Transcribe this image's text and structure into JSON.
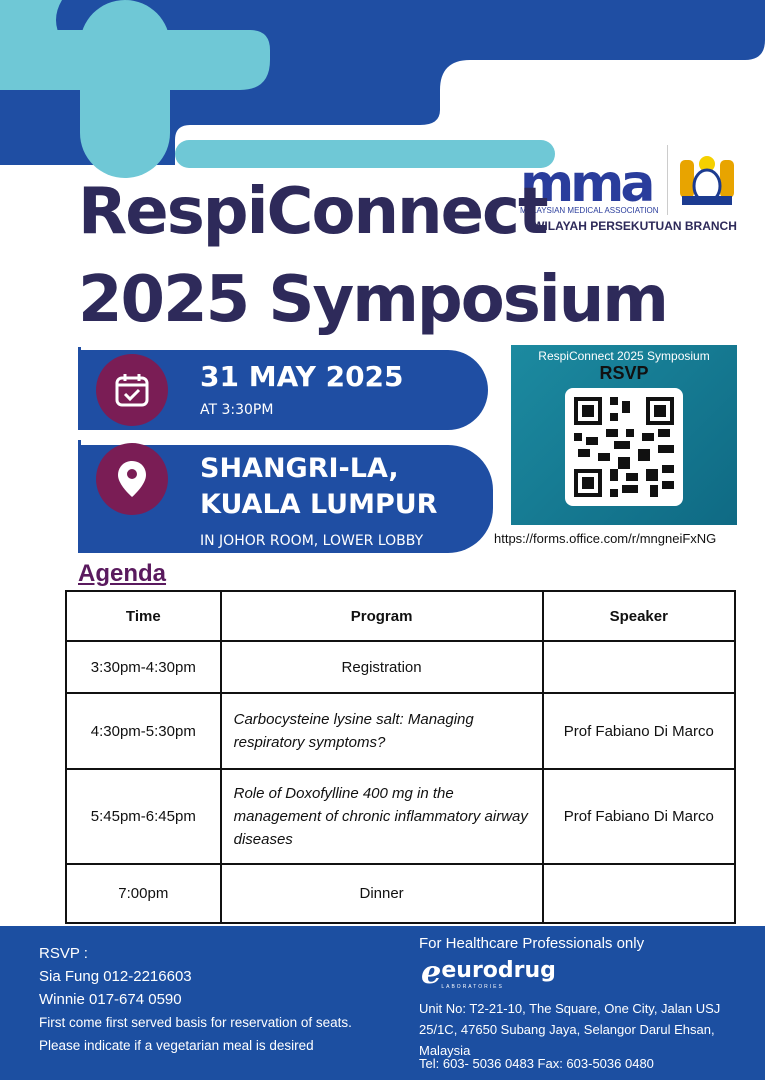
{
  "title_line1": "RespiConnect",
  "title_line2": "2025 Symposium",
  "logo": {
    "mma": "mma",
    "association": "MALAYSIAN MEDICAL ASSOCIATION",
    "branch": "WILAYAH PERSEKUTUAN BRANCH"
  },
  "date": {
    "main": "31 MAY 2025",
    "sub": "AT 3:30PM",
    "icon": "calendar-check-icon"
  },
  "venue": {
    "line1": "SHANGRI-LA,",
    "line2": "KUALA LUMPUR",
    "sub": "IN JOHOR ROOM, LOWER LOBBY",
    "icon": "map-pin-icon"
  },
  "rsvp_box": {
    "title": "RespiConnect 2025 Symposium",
    "label": "RSVP",
    "url": "https://forms.office.com/r/mngneiFxNG"
  },
  "agenda": {
    "heading": "Agenda",
    "headers": [
      "Time",
      "Program",
      "Speaker"
    ],
    "rows": [
      {
        "time": "3:30pm-4:30pm",
        "program": "Registration",
        "speaker": ""
      },
      {
        "time": "4:30pm-5:30pm",
        "program": "Carbocysteine lysine salt: Managing respiratory symptoms?",
        "speaker": "Prof Fabiano Di Marco"
      },
      {
        "time": "5:45pm-6:45pm",
        "program": "Role of Doxofylline 400 mg in the management of chronic inflammatory airway diseases",
        "speaker": "Prof Fabiano Di Marco"
      },
      {
        "time": "7:00pm",
        "program": "Dinner",
        "speaker": ""
      }
    ]
  },
  "footer": {
    "rsvp": "RSVP :",
    "contact1": "Sia Fung 012-2216603",
    "contact2": "Winnie 017-674 0590",
    "note1": "First come first served basis for reservation of seats.",
    "note2": "Please indicate if a vegetarian meal is desired",
    "hcp": "For Healthcare Professionals only",
    "brand": "eurodrug",
    "brand_sub": "LABORATORIES",
    "address": "Unit No: T2-21-10, The Square, One City, Jalan USJ 25/1C, 47650 Subang Jaya, Selangor Darul Ehsan, Malaysia",
    "tel": "Tel: 603- 5036 0483 Fax: 603-5036 0480"
  },
  "colors": {
    "navy": "#2e2a5a",
    "blue": "#1f4ea3",
    "teal": "#6fc8d6",
    "plum": "#7a1d55"
  }
}
